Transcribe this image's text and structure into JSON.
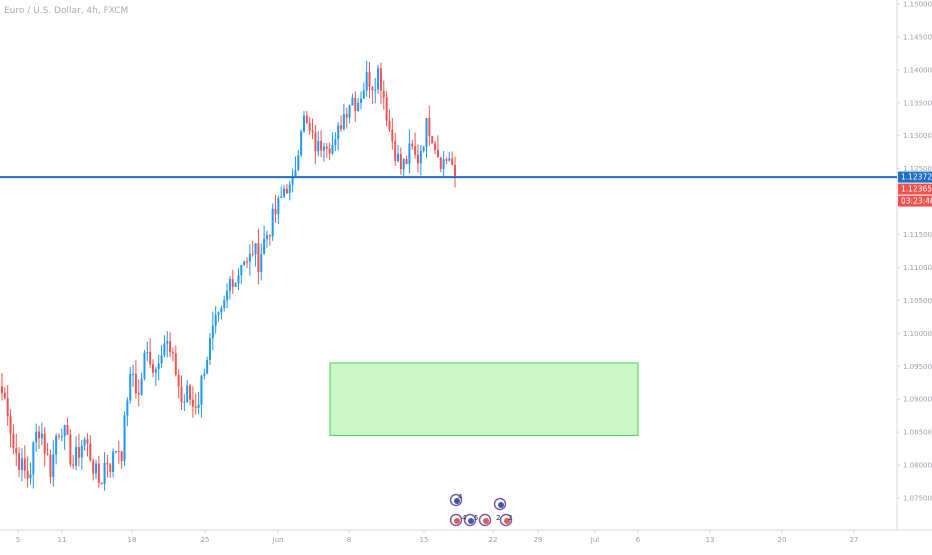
{
  "header": {
    "symbol": "Euro / U.S. Dollar, 4h, FXCM"
  },
  "colors": {
    "up": "#2196f3",
    "down": "#ef5350",
    "level_line": "#1e6fc8",
    "zone_fill": "#c6f7c2",
    "zone_border": "#4cd14a",
    "grid": "#eef0f3",
    "axis_border": "#d6d9df"
  },
  "price_scale": {
    "labels": [
      "1.15000",
      "1.14500",
      "1.14000",
      "1.13500",
      "1.13000",
      "1.12500",
      "1.12000",
      "1.11500",
      "1.11000",
      "1.10500",
      "1.10000",
      "1.09500",
      "1.09000",
      "1.08500",
      "1.08000",
      "1.07500"
    ],
    "values": [
      1.15,
      1.145,
      1.14,
      1.135,
      1.13,
      1.125,
      1.12,
      1.115,
      1.11,
      1.105,
      1.1,
      1.095,
      1.09,
      1.085,
      1.08,
      1.075
    ]
  },
  "time_scale": {
    "labels": [
      "5",
      "11",
      "18",
      "25",
      "Jun",
      "8",
      "15",
      "22",
      "29",
      "Jul",
      "6",
      "13",
      "20",
      "27"
    ]
  },
  "horizontal_level": {
    "price": 1.12372,
    "label": "1.12372"
  },
  "last_price": {
    "price": 1.12365,
    "label": "1.12365"
  },
  "countdown": {
    "label": "03:23:46"
  },
  "zone": {
    "price_top": 1.0955,
    "price_bottom": 1.0845,
    "start": "2020-06-05",
    "end": "2020-07-06"
  },
  "events": [
    {
      "label": "4"
    },
    {
      "label": "4"
    },
    {
      "label": "5"
    },
    {
      "label": "2"
    },
    {
      "label": "2"
    }
  ],
  "chart_data": {
    "type": "candlestick",
    "symbol": "Euro / U.S. Dollar, 4h, FXCM",
    "x_tick_labels": [
      "5",
      "11",
      "18",
      "25",
      "Jun",
      "8",
      "15",
      "22",
      "29",
      "Jul",
      "6",
      "13",
      "20",
      "27"
    ],
    "y_range": [
      1.072,
      1.152
    ],
    "y_tick_labels": [
      "1.15000",
      "1.14500",
      "1.14000",
      "1.13500",
      "1.13000",
      "1.12500",
      "1.12000",
      "1.11500",
      "1.11000",
      "1.10500",
      "1.10000",
      "1.09500",
      "1.09000",
      "1.08500",
      "1.08000",
      "1.07500"
    ],
    "grid": false,
    "close_path": [
      1.091,
      1.089,
      1.083,
      1.081,
      1.079,
      1.078,
      1.084,
      1.086,
      1.082,
      1.079,
      1.085,
      1.086,
      1.083,
      1.08,
      1.082,
      1.084,
      1.082,
      1.079,
      1.077,
      1.081,
      1.08,
      1.083,
      1.082,
      1.091,
      1.094,
      1.09,
      1.096,
      1.097,
      1.094,
      1.098,
      1.099,
      1.096,
      1.094,
      1.089,
      1.091,
      1.089,
      1.09,
      1.095,
      1.098,
      1.101,
      1.102,
      1.105,
      1.109,
      1.108,
      1.112,
      1.11,
      1.113,
      1.111,
      1.114,
      1.116,
      1.118,
      1.12,
      1.123,
      1.121,
      1.127,
      1.133,
      1.131,
      1.129,
      1.128,
      1.13,
      1.129,
      1.128,
      1.132,
      1.134,
      1.136,
      1.135,
      1.137,
      1.139,
      1.138,
      1.14,
      1.136,
      1.131,
      1.128,
      1.125,
      1.126,
      1.128,
      1.126,
      1.129,
      1.132,
      1.13,
      1.127,
      1.126,
      1.127,
      1.1237
    ],
    "annotations": [
      "Horizontal level 1.12372",
      "Last price 1.12365",
      "Bar countdown 03:23:46",
      "Rectangle zone 1.0845 – 1.0955"
    ]
  }
}
